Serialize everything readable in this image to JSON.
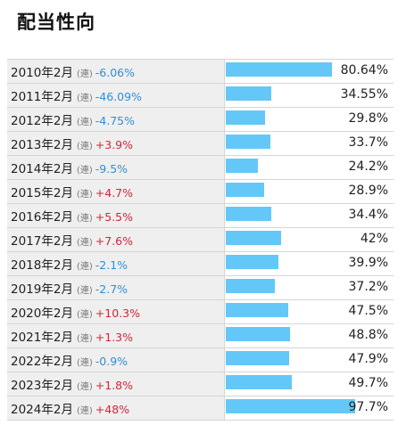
{
  "title": "配当性向",
  "renketsu_label": "(連)",
  "chart_data": {
    "type": "bar",
    "orientation": "horizontal",
    "title": "配当性向",
    "xlim": [
      0,
      100
    ],
    "rows": [
      {
        "period": "2010年2月",
        "change": "-6.06%",
        "direction": "down",
        "value": 80.64,
        "value_label": "80.64%"
      },
      {
        "period": "2011年2月",
        "change": "-46.09%",
        "direction": "down",
        "value": 34.55,
        "value_label": "34.55%"
      },
      {
        "period": "2012年2月",
        "change": "-4.75%",
        "direction": "down",
        "value": 29.8,
        "value_label": "29.8%"
      },
      {
        "period": "2013年2月",
        "change": "+3.9%",
        "direction": "up",
        "value": 33.7,
        "value_label": "33.7%"
      },
      {
        "period": "2014年2月",
        "change": "-9.5%",
        "direction": "down",
        "value": 24.2,
        "value_label": "24.2%"
      },
      {
        "period": "2015年2月",
        "change": "+4.7%",
        "direction": "up",
        "value": 28.9,
        "value_label": "28.9%"
      },
      {
        "period": "2016年2月",
        "change": "+5.5%",
        "direction": "up",
        "value": 34.4,
        "value_label": "34.4%"
      },
      {
        "period": "2017年2月",
        "change": "+7.6%",
        "direction": "up",
        "value": 42,
        "value_label": "42%"
      },
      {
        "period": "2018年2月",
        "change": "-2.1%",
        "direction": "down",
        "value": 39.9,
        "value_label": "39.9%"
      },
      {
        "period": "2019年2月",
        "change": "-2.7%",
        "direction": "down",
        "value": 37.2,
        "value_label": "37.2%"
      },
      {
        "period": "2020年2月",
        "change": "+10.3%",
        "direction": "up",
        "value": 47.5,
        "value_label": "47.5%"
      },
      {
        "period": "2021年2月",
        "change": "+1.3%",
        "direction": "up",
        "value": 48.8,
        "value_label": "48.8%"
      },
      {
        "period": "2022年2月",
        "change": "-0.9%",
        "direction": "down",
        "value": 47.9,
        "value_label": "47.9%"
      },
      {
        "period": "2023年2月",
        "change": "+1.8%",
        "direction": "up",
        "value": 49.7,
        "value_label": "49.7%"
      },
      {
        "period": "2024年2月",
        "change": "+48%",
        "direction": "up",
        "value": 97.7,
        "value_label": "97.7%"
      }
    ]
  },
  "colors": {
    "bar": "#63c8f7",
    "up": "#d2263a",
    "down": "#2f8fd8",
    "label_bg": "#efefef"
  }
}
